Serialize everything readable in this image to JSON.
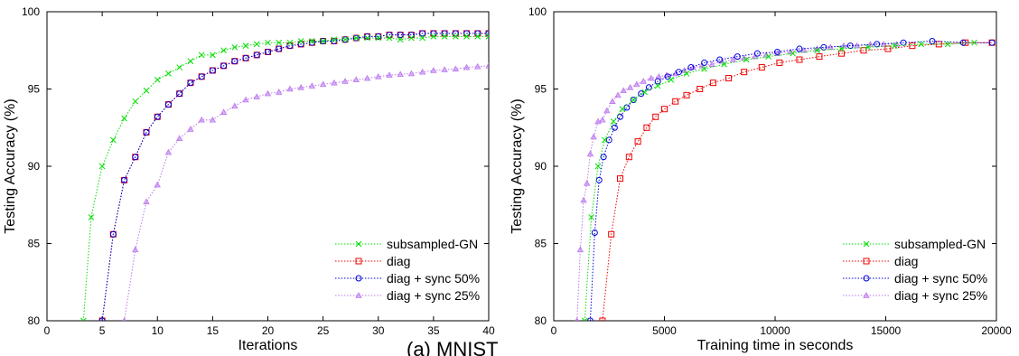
{
  "caption": "(a) MNIST",
  "chart_data": [
    {
      "type": "line",
      "title": "",
      "xlabel": "Iterations",
      "ylabel": "Testing Accuracy (%)",
      "xlim": [
        0,
        40
      ],
      "ylim": [
        80,
        100
      ],
      "xticks": [
        0,
        5,
        10,
        15,
        20,
        25,
        30,
        35,
        40
      ],
      "yticks": [
        80,
        85,
        90,
        95,
        100
      ],
      "legend_position": "bottom-right",
      "series": [
        {
          "name": "subsampled-GN",
          "color": "#00dd00",
          "marker": "x",
          "x": [
            3.3,
            4,
            5,
            6,
            7,
            8,
            9,
            10,
            11,
            12,
            13,
            14,
            15,
            16,
            17,
            18,
            19,
            20,
            21,
            22,
            23,
            24,
            25,
            26,
            27,
            28,
            29,
            30,
            31,
            32,
            33,
            34,
            35,
            36,
            37,
            38,
            39,
            40
          ],
          "y": [
            80,
            86.7,
            90,
            91.7,
            93.1,
            94.2,
            94.9,
            95.6,
            96.0,
            96.4,
            96.8,
            97.2,
            97.2,
            97.5,
            97.7,
            97.8,
            97.9,
            98.0,
            98.0,
            98.0,
            98.1,
            98.1,
            98.1,
            98.2,
            98.2,
            98.3,
            98.3,
            98.3,
            98.3,
            98.2,
            98.3,
            98.3,
            98.4,
            98.4,
            98.4,
            98.4,
            98.4,
            98.4
          ]
        },
        {
          "name": "diag",
          "color": "#ee0000",
          "marker": "square",
          "x": [
            5,
            6,
            7,
            8,
            9,
            10,
            11,
            12,
            13,
            14,
            15,
            16,
            17,
            18,
            19,
            20,
            21,
            22,
            23,
            24,
            25,
            26,
            27,
            28,
            29,
            30,
            31,
            32,
            33,
            34,
            35,
            36,
            37,
            38,
            39,
            40
          ],
          "y": [
            80,
            85.6,
            89.1,
            90.6,
            92.2,
            93.2,
            94.0,
            94.7,
            95.4,
            95.8,
            96.2,
            96.5,
            96.8,
            97.0,
            97.2,
            97.4,
            97.6,
            97.8,
            97.9,
            98.0,
            98.1,
            98.1,
            98.2,
            98.3,
            98.4,
            98.4,
            98.5,
            98.5,
            98.5,
            98.6,
            98.6,
            98.6,
            98.6,
            98.6,
            98.6,
            98.6
          ]
        },
        {
          "name": "diag + sync 50%",
          "color": "#0000dd",
          "marker": "circle",
          "x": [
            5,
            6,
            7,
            8,
            9,
            10,
            11,
            12,
            13,
            14,
            15,
            16,
            17,
            18,
            19,
            20,
            21,
            22,
            23,
            24,
            25,
            26,
            27,
            28,
            29,
            30,
            31,
            32,
            33,
            34,
            35,
            36,
            37,
            38,
            39,
            40
          ],
          "y": [
            80,
            85.6,
            89.1,
            90.6,
            92.2,
            93.2,
            94.0,
            94.7,
            95.4,
            95.8,
            96.2,
            96.5,
            96.8,
            97.0,
            97.2,
            97.4,
            97.6,
            97.8,
            97.9,
            98.0,
            98.1,
            98.1,
            98.2,
            98.3,
            98.4,
            98.4,
            98.5,
            98.5,
            98.5,
            98.6,
            98.6,
            98.6,
            98.6,
            98.6,
            98.6,
            98.6
          ]
        },
        {
          "name": "diag + sync 25%",
          "color": "#bb77ee",
          "marker": "triangle",
          "x": [
            7,
            8,
            9,
            10,
            11,
            12,
            13,
            14,
            15,
            16,
            17,
            18,
            19,
            20,
            21,
            22,
            23,
            24,
            25,
            26,
            27,
            28,
            29,
            30,
            31,
            32,
            33,
            34,
            35,
            36,
            37,
            38,
            39,
            40
          ],
          "y": [
            80,
            84.6,
            87.7,
            88.8,
            90.9,
            91.8,
            92.4,
            93.0,
            93.0,
            93.5,
            93.9,
            94.3,
            94.5,
            94.7,
            94.8,
            95.0,
            95.1,
            95.2,
            95.3,
            95.4,
            95.5,
            95.6,
            95.7,
            95.8,
            95.9,
            95.95,
            96.0,
            96.1,
            96.2,
            96.25,
            96.3,
            96.4,
            96.45,
            96.5
          ]
        }
      ]
    },
    {
      "type": "line",
      "title": "",
      "xlabel": "Training time in seconds",
      "ylabel": "Testing Accuracy (%)",
      "xlim": [
        0,
        20000
      ],
      "ylim": [
        80,
        100
      ],
      "xticks": [
        0,
        5000,
        10000,
        15000,
        20000
      ],
      "yticks": [
        80,
        85,
        90,
        95,
        100
      ],
      "legend_position": "bottom-right",
      "series": [
        {
          "name": "subsampled-GN",
          "color": "#00dd00",
          "marker": "x",
          "x": [
            1400,
            1700,
            2000,
            2300,
            2700,
            3100,
            3600,
            4100,
            4700,
            5300,
            6000,
            6800,
            7700,
            8700,
            9700,
            10800,
            11900,
            13000,
            14200,
            15400,
            16600,
            17800,
            19000
          ],
          "y": [
            80,
            86.7,
            90,
            91.7,
            92.9,
            93.7,
            94.3,
            94.8,
            95.2,
            95.6,
            96.0,
            96.3,
            96.6,
            96.9,
            97.1,
            97.3,
            97.5,
            97.6,
            97.7,
            97.8,
            97.9,
            97.9,
            98.0
          ]
        },
        {
          "name": "diag",
          "color": "#ee0000",
          "marker": "square",
          "x": [
            2200,
            2600,
            3000,
            3400,
            3800,
            4200,
            4600,
            5000,
            5500,
            6000,
            6600,
            7200,
            7900,
            8600,
            9400,
            10200,
            11100,
            12000,
            13000,
            14000,
            15100,
            16200,
            17400,
            18600,
            19800
          ],
          "y": [
            80,
            85.6,
            89.2,
            90.6,
            91.6,
            92.5,
            93.2,
            93.7,
            94.2,
            94.6,
            95.0,
            95.4,
            95.7,
            96.1,
            96.4,
            96.7,
            96.9,
            97.1,
            97.3,
            97.5,
            97.6,
            97.8,
            97.9,
            98.0,
            98.0
          ]
        },
        {
          "name": "diag + sync 50%",
          "color": "#0000dd",
          "marker": "circle",
          "x": [
            1650,
            1850,
            2050,
            2250,
            2500,
            2750,
            3000,
            3300,
            3600,
            3950,
            4300,
            4700,
            5150,
            5650,
            6200,
            6800,
            7500,
            8300,
            9200,
            10100,
            11100,
            12200,
            13400,
            14600,
            15800,
            17100,
            18500,
            19800
          ],
          "y": [
            80,
            85.7,
            89.1,
            90.6,
            91.7,
            92.5,
            93.2,
            93.8,
            94.3,
            94.7,
            95.1,
            95.5,
            95.8,
            96.1,
            96.4,
            96.7,
            96.9,
            97.1,
            97.3,
            97.4,
            97.6,
            97.7,
            97.8,
            97.9,
            98.0,
            98.1,
            98.0,
            98.0
          ]
        },
        {
          "name": "diag + sync 25%",
          "color": "#bb77ee",
          "marker": "triangle",
          "x": [
            1050,
            1200,
            1350,
            1500,
            1650,
            1800,
            2000,
            2200,
            2400,
            2650,
            2900,
            3150,
            3450,
            3750,
            4050,
            4400,
            4750,
            5100,
            5500,
            5900,
            6300,
            6700,
            7150,
            7600,
            8100,
            8600,
            9100,
            9600,
            10100,
            10700,
            11300,
            11900,
            12500,
            13100,
            13700,
            14300,
            14900,
            15500
          ],
          "y": [
            80,
            84.6,
            87.8,
            88.9,
            90.8,
            91.9,
            92.9,
            93.0,
            93.6,
            94.2,
            94.6,
            94.9,
            95.1,
            95.3,
            95.5,
            95.7,
            95.8,
            95.9,
            96.0,
            96.2,
            96.4,
            96.5,
            96.6,
            96.8,
            96.9,
            97.0,
            97.1,
            97.2,
            97.3,
            97.4,
            97.5,
            97.6,
            97.7,
            97.8,
            97.8,
            97.9,
            97.9,
            97.9
          ]
        }
      ]
    }
  ]
}
